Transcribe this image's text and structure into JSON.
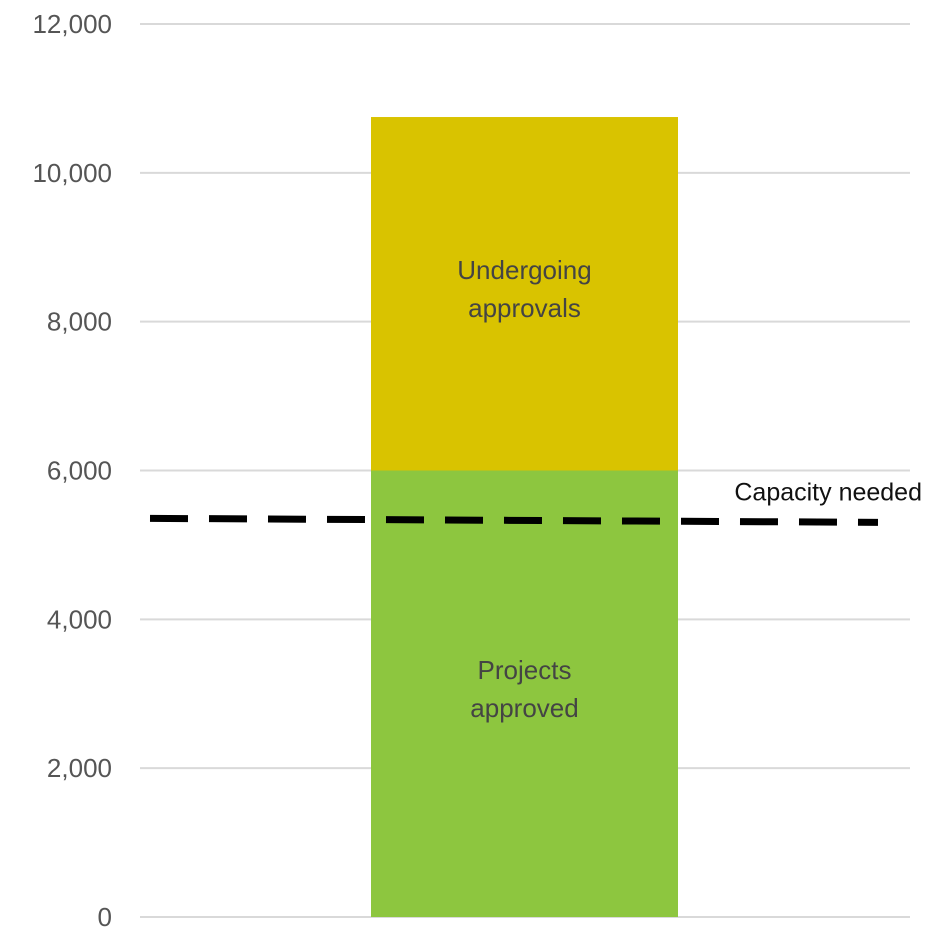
{
  "chart_data": {
    "type": "bar",
    "stacked": true,
    "categories": [
      ""
    ],
    "series": [
      {
        "name": "Projects approved",
        "label_lines": [
          "Projects",
          "approved"
        ],
        "values": [
          6000
        ],
        "color": "#8dc63f"
      },
      {
        "name": "Undergoing approvals",
        "label_lines": [
          "Undergoing",
          "approvals"
        ],
        "values": [
          4750
        ],
        "color": "#d9c300"
      }
    ],
    "reference_line": {
      "label": "Capacity needed",
      "value": 5330,
      "style": "dashed",
      "color": "#000000"
    },
    "ylim": [
      0,
      12000
    ],
    "yticks": [
      0,
      2000,
      4000,
      6000,
      8000,
      10000,
      12000
    ],
    "ytick_labels": [
      "0",
      "2,000",
      "4,000",
      "6,000",
      "8,000",
      "10,000",
      "12,000"
    ],
    "grid": true,
    "legend": "none",
    "title": "",
    "xlabel": "",
    "ylabel": ""
  }
}
